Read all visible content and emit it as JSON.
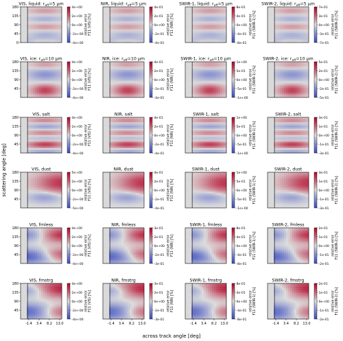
{
  "figure": {
    "ylabel": "scattering angle [deg]",
    "xlabel": "across track angle [deg]",
    "cbar_label_prefix": "relative error",
    "cbar_label_line2_template": "F11 ({band}) [%]",
    "colormap": "coolwarm",
    "cutoff_line_color": "#333333",
    "masked_region_color": "#d9d9d9"
  },
  "chart_data": {
    "type": "heatmap",
    "layout": "6 rows x 4 columns",
    "x_ticks": [
      "-1.4",
      "3.4",
      "8.2",
      "13.0"
    ],
    "y_ticks": {
      "liquid": [
        "180",
        "135",
        "90",
        "45",
        "0"
      ],
      "ice": [
        "180",
        "135",
        "90",
        "45"
      ],
      "other": [
        "180",
        "135",
        "90",
        "45"
      ]
    },
    "rows": [
      {
        "key": "liquid",
        "panels": [
          {
            "band": "VIS",
            "title": "VIS, liquid: r",
            "title_sub": "eff",
            "title_tail": "=5 µm",
            "cbar_ticks": [
              "4e+00",
              "2e+00",
              "0e+00",
              "-2e+00",
              "-4e+00"
            ],
            "pattern": "liquid"
          },
          {
            "band": "NIR",
            "title": "NIR, liquid: r",
            "title_sub": "eff",
            "title_tail": "=5 µm",
            "cbar_ticks": [
              "4e-01",
              "2e-01",
              "0e+00",
              "-2e-01",
              "-4e-01"
            ],
            "pattern": "liquid"
          },
          {
            "band": "SWIR-1",
            "title": "SWIR-1, liquid: r",
            "title_sub": "eff",
            "title_tail": "=5 µm",
            "cbar_ticks": [
              "8e-01",
              "4e-01",
              "0e+00",
              "-4e-01",
              "-8e-01"
            ],
            "pattern": "liquid"
          },
          {
            "band": "SWIR-2",
            "title": "SWIR-2, liquid: r",
            "title_sub": "eff",
            "title_tail": "=5 µm",
            "cbar_ticks": [
              "7e-01",
              "3e-01",
              "0e+00",
              "-3e-01",
              "-7e-01"
            ],
            "pattern": "liquid"
          }
        ]
      },
      {
        "key": "ice",
        "panels": [
          {
            "band": "VIS",
            "title": "VIS, ice: r",
            "title_sub": "eff",
            "title_tail": "=10 µm",
            "cbar_ticks": [
              "4e+00",
              "2e+00",
              "0e+00",
              "-2e+00",
              "-4e+00"
            ],
            "pattern": "ice"
          },
          {
            "band": "NIR",
            "title": "NIR, ice: r",
            "title_sub": "eff",
            "title_tail": "=10 µm",
            "cbar_ticks": [
              "4e-01",
              "2e-01",
              "0e+00",
              "-2e-01",
              "-4e-01"
            ],
            "pattern": "ice"
          },
          {
            "band": "SWIR-1",
            "title": "SWIR-1, ice: r",
            "title_sub": "eff",
            "title_tail": "=10 µm",
            "cbar_ticks": [
              "1e+00",
              "5e-01",
              "0e+00",
              "-5e-01",
              "-1e+00"
            ],
            "pattern": "ice"
          },
          {
            "band": "SWIR-2",
            "title": "SWIR-2, ice: r",
            "title_sub": "eff",
            "title_tail": "=10 µm",
            "cbar_ticks": [
              "5e-01",
              "2e-01",
              "0e+00",
              "-2e-01",
              "-5e-01"
            ],
            "pattern": "ice"
          }
        ]
      },
      {
        "key": "salt",
        "panels": [
          {
            "band": "VIS",
            "title": "VIS, salt",
            "cbar_ticks": [
              "4e+00",
              "2e+00",
              "0e+00",
              "-2e+00",
              "-4e+00"
            ],
            "pattern": "salt"
          },
          {
            "band": "NIR",
            "title": "NIR, salt",
            "cbar_ticks": [
              "4e-01",
              "2e-01",
              "0e+00",
              "-2e-01",
              "-4e-01"
            ],
            "pattern": "salt"
          },
          {
            "band": "SWIR-1",
            "title": "SWIR-1, salt",
            "cbar_ticks": [
              "1e+00",
              "5e-01",
              "0e+00",
              "-5e-01",
              "-1e+00"
            ],
            "pattern": "salt"
          },
          {
            "band": "SWIR-2",
            "title": "SWIR-2, salt",
            "cbar_ticks": [
              "3e-01",
              "1e-01",
              "0e+00",
              "-1e-01",
              "-3e-01"
            ],
            "pattern": "salt"
          }
        ]
      },
      {
        "key": "dust",
        "panels": [
          {
            "band": "VIS",
            "title": "VIS, dust",
            "cbar_ticks": [
              "5e+00",
              "2e+00",
              "0e+00",
              "-2e+00",
              "-5e+00"
            ],
            "pattern": "dust"
          },
          {
            "band": "NIR",
            "title": "NIR, dust",
            "cbar_ticks": [
              "4e-01",
              "2e-01",
              "0e+00",
              "-2e-01",
              "-4e-01"
            ],
            "pattern": "dust"
          },
          {
            "band": "SWIR-1",
            "title": "SWIR-1, dust",
            "cbar_ticks": [
              "1e+00",
              "5e-01",
              "0e+00",
              "-5e-01",
              "-1e+00"
            ],
            "pattern": "dust"
          },
          {
            "band": "SWIR-2",
            "title": "SWIR-2, dust",
            "cbar_ticks": [
              "3e-01",
              "1e-01",
              "0e+00",
              "-1e-01",
              "-3e-01"
            ],
            "pattern": "dust"
          }
        ]
      },
      {
        "key": "fmless",
        "panels": [
          {
            "band": "VIS",
            "title": "VIS, fmless",
            "cbar_ticks": [
              "4e+00",
              "2e+00",
              "0e+00",
              "-2e+00",
              "-4e+00"
            ],
            "pattern": "fmless"
          },
          {
            "band": "NIR",
            "title": "NIR, fmless",
            "cbar_ticks": [
              "3e-01",
              "2e-01",
              "0e+00",
              "-2e-01",
              "-3e-01"
            ],
            "pattern": "fmless"
          },
          {
            "band": "SWIR-1",
            "title": "SWIR-1, fmless",
            "cbar_ticks": [
              "8e-01",
              "4e-01",
              "0e+00",
              "-4e-01",
              "-8e-01"
            ],
            "pattern": "fmless"
          },
          {
            "band": "SWIR-2",
            "title": "SWIR-2, fmless",
            "cbar_ticks": [
              "2e-01",
              "1e-01",
              "0e+00",
              "-1e-01",
              "-2e-01"
            ],
            "pattern": "fmless"
          }
        ]
      },
      {
        "key": "fmstrg",
        "panels": [
          {
            "band": "VIS",
            "title": "VIS, fmstrg",
            "cbar_ticks": [
              "4e+00",
              "2e+00",
              "0e+00",
              "-2e+00",
              "-4e+00"
            ],
            "pattern": "fmstrg"
          },
          {
            "band": "NIR",
            "title": "NIR, fmstrg",
            "cbar_ticks": [
              "3e-01",
              "2e-01",
              "0e+00",
              "-2e-01",
              "-3e-01"
            ],
            "pattern": "fmstrg"
          },
          {
            "band": "SWIR-1",
            "title": "SWIR-1, fmstrg",
            "cbar_ticks": [
              "8e-01",
              "4e-01",
              "0e+00",
              "-4e-01",
              "-8e-01"
            ],
            "pattern": "fmstrg"
          },
          {
            "band": "SWIR-2",
            "title": "SWIR-2, fmstrg",
            "cbar_ticks": [
              "2e-01",
              "1e-01",
              "0e+00",
              "-1e-01",
              "-2e-01"
            ],
            "pattern": "fmstrg"
          }
        ]
      }
    ]
  }
}
